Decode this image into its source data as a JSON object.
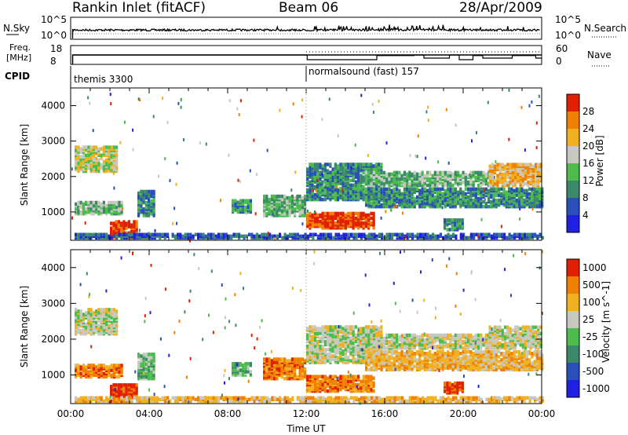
{
  "header": {
    "station": "Rankin Inlet (fitACF)",
    "beam": "Beam 06",
    "date": "28/Apr/2009"
  },
  "colors": {
    "scale": [
      "#2020e0",
      "#2850b8",
      "#3a8a6a",
      "#4cbc4c",
      "#c8c8c0",
      "#f0b020",
      "#f08000",
      "#e02000"
    ]
  },
  "chart_data": [
    {
      "type": "line",
      "name": "noise-panel",
      "left_label": "N.Sky",
      "right_label": "N.Search",
      "y_ticks_left": [
        "10^5",
        "10^0"
      ],
      "y_ticks_right": [
        "10^5",
        "10^0"
      ],
      "xlim": [
        0,
        24
      ]
    },
    {
      "type": "line",
      "name": "frequency-panel",
      "left_label": "Freq.",
      "left_unit": "[MHz]",
      "right_label": "Nave",
      "y_ticks_left": [
        18,
        8
      ],
      "y_ticks_right": [
        60,
        0
      ],
      "xlim": [
        0,
        24
      ],
      "nave_steps": [
        {
          "t": 0.1,
          "v": 30
        },
        {
          "t": 12.0,
          "v": 30
        },
        {
          "t": 12.05,
          "v": 15
        },
        {
          "t": 15.0,
          "v": 15
        },
        {
          "t": 15.6,
          "v": 28
        },
        {
          "t": 17.5,
          "v": 30
        },
        {
          "t": 18.0,
          "v": 20
        },
        {
          "t": 19.3,
          "v": 30
        },
        {
          "t": 19.8,
          "v": 15
        },
        {
          "t": 20.5,
          "v": 28
        },
        {
          "t": 21.0,
          "v": 20
        },
        {
          "t": 22.5,
          "v": 28
        },
        {
          "t": 23.7,
          "v": 20
        }
      ]
    },
    {
      "type": "heatmap",
      "name": "power",
      "ylabel": "Slant Range [km]",
      "xlabel": "",
      "ylim": [
        200,
        4500
      ],
      "y_ticks": [
        1000,
        2000,
        3000,
        4000
      ],
      "colorbar_label": "Power [dB]",
      "colorbar_ticks": [
        4,
        8,
        12,
        16,
        20,
        24,
        28
      ],
      "xlim": [
        0,
        24
      ]
    },
    {
      "type": "heatmap",
      "name": "velocity",
      "ylabel": "Slant Range [km]",
      "xlabel": "Time UT",
      "ylim": [
        200,
        4500
      ],
      "y_ticks": [
        1000,
        2000,
        3000,
        4000
      ],
      "colorbar_label": "Velocity [m s^-1]",
      "colorbar_ticks": [
        1000,
        500,
        100,
        25,
        -25,
        -100,
        -500,
        -1000
      ],
      "xlim": [
        0,
        24
      ],
      "x_ticks": [
        0,
        4,
        8,
        12,
        16,
        20,
        24
      ],
      "x_tick_labels": [
        "00:00",
        "04:00",
        "08:00",
        "12:00",
        "16:00",
        "20:00",
        "00:00"
      ]
    }
  ],
  "cpid": {
    "label": "CPID",
    "segments": [
      {
        "start": 0,
        "name": "themis 3300"
      },
      {
        "start": 12,
        "name": "normalsound (fast) 157"
      }
    ]
  }
}
